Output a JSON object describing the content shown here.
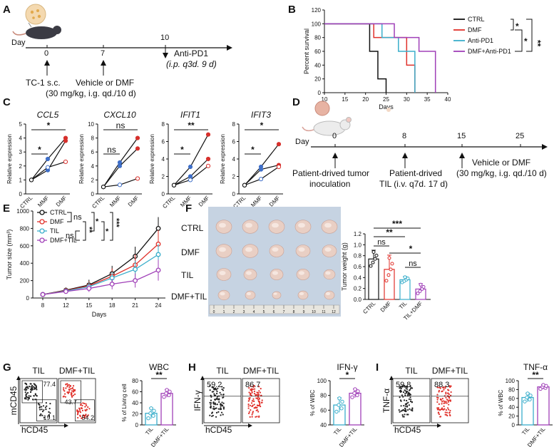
{
  "panels": {
    "A": {
      "label": "A",
      "day_label": "Day",
      "ticks": [
        "0",
        "7",
        "10"
      ],
      "treatment": "Anti-PD1",
      "treatment_detail": "(i.p. q3d. 9 d)",
      "event_0": "TC-1 s.c.",
      "event_7_line1": "Vehicle or DMF",
      "event_7_line2": "(30 mg/kg, i.g. qd./10 d)"
    },
    "B": {
      "label": "B"
    },
    "C": {
      "label": "C"
    },
    "D": {
      "label": "D",
      "day_label": "Day",
      "ticks": [
        "0",
        "8",
        "15",
        "25"
      ],
      "event_0_line1": "Patient-drived tumor",
      "event_0_line2": "inoculation",
      "event_8_line1": "Patient-drived",
      "event_8_line2": "TIL (i.v. q7d. 17 d)",
      "event_15_line1": "Vehicle or DMF",
      "event_15_line2": "(30 mg/kg, i.g. qd./10 d)"
    },
    "E": {
      "label": "E"
    },
    "F": {
      "label": "F",
      "rows": [
        "CTRL",
        "DMF",
        "TIL",
        "DMF+TIL"
      ],
      "ruler": [
        "0",
        "1",
        "2",
        "3",
        "4",
        "5",
        "6",
        "7",
        "8",
        "9",
        "10",
        "11",
        "12"
      ],
      "ylabel": "Tumor weight (g)",
      "categories": [
        "CTRL",
        "DMF",
        "TIL",
        "TIL+DMF"
      ],
      "yticks": [
        "0.0",
        "0.2",
        "0.4",
        "0.6",
        "0.8",
        "1.0",
        "1.2"
      ],
      "sig": [
        "***",
        "**",
        "ns",
        "*",
        "ns"
      ]
    },
    "G": {
      "label": "G",
      "flow_labels": [
        "TIL",
        "DMF+TIL"
      ],
      "y_axis": "mCD45",
      "x_axis": "hCD45",
      "numbers": [
        "77.4",
        "19.1",
        "43.7",
        "54.2"
      ],
      "bar_title": "WBC",
      "ylabel": "% of Living cell",
      "yticks": [
        "0",
        "20",
        "40",
        "60",
        "80"
      ],
      "categories": [
        "TIL",
        "DMF+TIL"
      ],
      "sig": "**"
    },
    "H": {
      "label": "H",
      "flow_labels": [
        "TIL",
        "DMF+TIL"
      ],
      "y_axis": "IFN-γ",
      "x_axis": "hCD45",
      "numbers": [
        "59.2",
        "86.7"
      ],
      "bar_title": "IFN-γ",
      "ylabel": "% of WBC",
      "yticks": [
        "40",
        "60",
        "80",
        "100"
      ],
      "categories": [
        "TIL",
        "DMF+TIL"
      ],
      "sig": "*"
    },
    "I": {
      "label": "I",
      "flow_labels": [
        "TIL",
        "DMF+TIL"
      ],
      "y_axis": "TNF-α",
      "x_axis": "hCD45",
      "numbers": [
        "59.8",
        "88.3"
      ],
      "bar_title": "TNF-α",
      "ylabel": "% of WBC",
      "yticks": [
        "0",
        "20",
        "40",
        "60",
        "80",
        "100"
      ],
      "categories": [
        "TIL",
        "DMF+TIL"
      ],
      "sig": "**"
    }
  },
  "chart_data": [
    {
      "id": "B",
      "type": "line",
      "title": "",
      "xlabel": "Days",
      "ylabel": "Percent survival",
      "xlim": [
        10,
        40
      ],
      "ylim": [
        0,
        120
      ],
      "xticks": [
        10,
        15,
        20,
        25,
        30,
        35,
        40
      ],
      "yticks": [
        0,
        20,
        40,
        60,
        80,
        100,
        120
      ],
      "sig": [
        "*",
        "*",
        "**"
      ],
      "series": [
        {
          "name": "CTRL",
          "color": "#111111",
          "x": [
            10,
            19,
            21,
            23,
            25
          ],
          "y": [
            100,
            100,
            60,
            20,
            0
          ]
        },
        {
          "name": "DMF",
          "color": "#e0302a",
          "x": [
            10,
            20,
            22,
            30,
            32
          ],
          "y": [
            100,
            100,
            80,
            40,
            0
          ]
        },
        {
          "name": "Anti-PD1",
          "color": "#3aaecb",
          "x": [
            10,
            20,
            24,
            28,
            32
          ],
          "y": [
            100,
            100,
            80,
            60,
            0
          ]
        },
        {
          "name": "DMF+Anti-PD1",
          "color": "#a040b8",
          "x": [
            10,
            25,
            27,
            33,
            37
          ],
          "y": [
            100,
            100,
            80,
            60,
            0
          ]
        }
      ]
    },
    {
      "id": "C1",
      "type": "line",
      "title": "CCL5",
      "ylabel": "Relative expression",
      "categories": [
        "CTRL",
        "MMF",
        "DMF"
      ],
      "ylim": [
        0,
        5
      ],
      "yticks": [
        0,
        1,
        2,
        3,
        4,
        5
      ],
      "sig": [
        "*",
        "*"
      ],
      "series": [
        {
          "name": "rep1",
          "values": [
            1,
            2.5,
            4.0
          ]
        },
        {
          "name": "rep2",
          "values": [
            1,
            1.7,
            3.8
          ]
        },
        {
          "name": "rep3",
          "values": [
            1,
            1.9,
            2.3
          ]
        }
      ]
    },
    {
      "id": "C2",
      "type": "line",
      "title": "CXCL10",
      "ylabel": "Relative expression",
      "categories": [
        "CTRL",
        "MMF",
        "DMF"
      ],
      "ylim": [
        0,
        10
      ],
      "yticks": [
        0,
        2,
        4,
        6,
        8,
        10
      ],
      "sig": [
        "ns",
        "ns"
      ],
      "series": [
        {
          "name": "rep1",
          "values": [
            1,
            4.5,
            8.0
          ]
        },
        {
          "name": "rep2",
          "values": [
            1,
            4.0,
            6.5
          ]
        },
        {
          "name": "rep3",
          "values": [
            1,
            1.3,
            2.2
          ]
        }
      ]
    },
    {
      "id": "C3",
      "type": "line",
      "title": "IFIT1",
      "ylabel": "Relative expression",
      "categories": [
        "CTRL",
        "MMF",
        "DMF"
      ],
      "ylim": [
        0,
        8
      ],
      "yticks": [
        0,
        2,
        4,
        6,
        8
      ],
      "sig": [
        "*",
        "**"
      ],
      "series": [
        {
          "name": "rep1",
          "values": [
            1,
            3.1,
            6.8
          ]
        },
        {
          "name": "rep2",
          "values": [
            1,
            2.0,
            4.0
          ]
        },
        {
          "name": "rep3",
          "values": [
            1,
            1.6,
            3.2
          ]
        }
      ]
    },
    {
      "id": "C4",
      "type": "line",
      "title": "IFIT3",
      "ylabel": "Relative expression",
      "categories": [
        "CTRL",
        "MMF",
        "DMF"
      ],
      "ylim": [
        0,
        8
      ],
      "yticks": [
        0,
        2,
        4,
        6,
        8
      ],
      "sig": [
        "*",
        "*"
      ],
      "series": [
        {
          "name": "rep1",
          "values": [
            1,
            3.1,
            5.7
          ]
        },
        {
          "name": "rep2",
          "values": [
            1,
            2.8,
            3.3
          ]
        },
        {
          "name": "rep3",
          "values": [
            1,
            1.7,
            3.1
          ]
        }
      ]
    },
    {
      "id": "E",
      "type": "line",
      "xlabel": "Days",
      "ylabel": "Tumor size (mm³)",
      "x": [
        8,
        12,
        15,
        18,
        21,
        24
      ],
      "ylim": [
        0,
        1000
      ],
      "yticks": [
        0,
        200,
        400,
        600,
        800,
        1000
      ],
      "sig": [
        "ns",
        "ns",
        "**",
        "*",
        "*",
        "***"
      ],
      "series": [
        {
          "name": "CTRL",
          "color": "#111111",
          "values": [
            40,
            90,
            150,
            280,
            480,
            800
          ],
          "err": [
            10,
            30,
            60,
            90,
            110,
            130
          ]
        },
        {
          "name": "DMF",
          "color": "#e0302a",
          "values": [
            40,
            85,
            140,
            250,
            380,
            620
          ],
          "err": [
            10,
            25,
            50,
            90,
            120,
            160
          ]
        },
        {
          "name": "TIL",
          "color": "#3aaecb",
          "values": [
            40,
            80,
            130,
            230,
            330,
            500
          ],
          "err": [
            10,
            25,
            50,
            70,
            100,
            120
          ]
        },
        {
          "name": "DMF+TIL",
          "color": "#a040b8",
          "values": [
            40,
            75,
            110,
            160,
            200,
            320
          ],
          "err": [
            10,
            20,
            40,
            60,
            80,
            120
          ]
        }
      ]
    },
    {
      "id": "F",
      "type": "bar",
      "ylabel": "Tumor weight (g)",
      "categories": [
        "CTRL",
        "DMF",
        "TIL",
        "TIL+DMF"
      ],
      "ylim": [
        0,
        1.2
      ],
      "values": [
        0.74,
        0.55,
        0.36,
        0.19
      ],
      "err": [
        0.16,
        0.26,
        0.06,
        0.1
      ],
      "colors": [
        "#111111",
        "#e0302a",
        "#3aaecb",
        "#a040b8"
      ]
    },
    {
      "id": "G",
      "type": "bar",
      "title": "WBC",
      "ylabel": "% of Living cell",
      "categories": [
        "TIL",
        "DMF+TIL"
      ],
      "ylim": [
        0,
        80
      ],
      "values": [
        21,
        57
      ],
      "err": [
        10,
        7
      ],
      "colors": [
        "#3aaecb",
        "#a040b8"
      ]
    },
    {
      "id": "H",
      "type": "bar",
      "title": "IFN-γ",
      "ylabel": "% of WBC",
      "categories": [
        "TIL",
        "DMF+TIL"
      ],
      "ylim": [
        40,
        100
      ],
      "values": [
        67,
        83
      ],
      "err": [
        10,
        6
      ],
      "colors": [
        "#3aaecb",
        "#a040b8"
      ]
    },
    {
      "id": "I",
      "type": "bar",
      "title": "TNF-α",
      "ylabel": "% of WBC",
      "categories": [
        "TIL",
        "DMF+TIL"
      ],
      "ylim": [
        0,
        100
      ],
      "values": [
        62,
        86
      ],
      "err": [
        10,
        5
      ],
      "colors": [
        "#3aaecb",
        "#a040b8"
      ]
    }
  ]
}
